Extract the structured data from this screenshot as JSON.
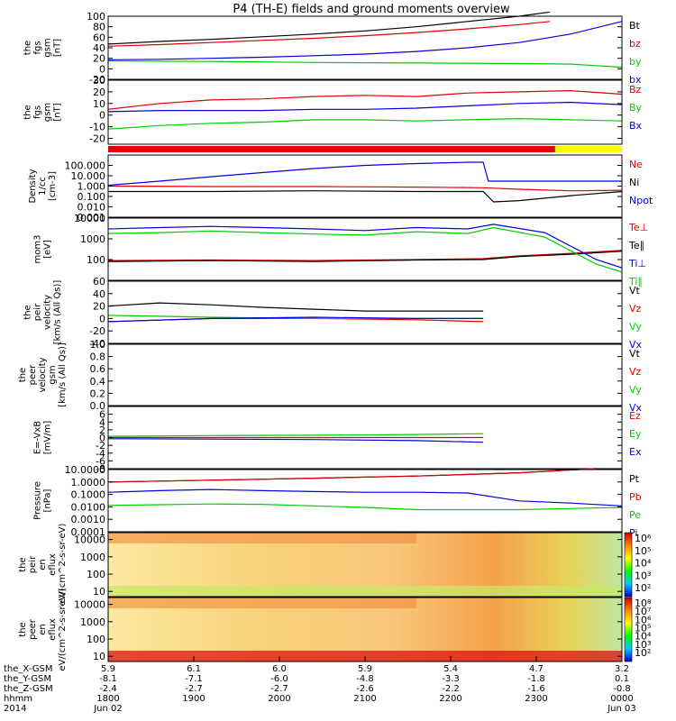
{
  "title": "P4 (TH-E) fields and ground moments overview",
  "colors": {
    "black": "#000000",
    "red": "#e00000",
    "blue": "#0000e0",
    "green": "#00cc00",
    "yellow": "#ffff00",
    "cyan": "#00c8ff"
  },
  "chart_data": [
    {
      "type": "line",
      "ylabel": [
        "the",
        "fgs",
        "gsm",
        "[nT]"
      ],
      "ylim": [
        -20,
        100
      ],
      "yticks": [
        "100",
        "80",
        "60",
        "40",
        "20",
        "0",
        "-20"
      ],
      "ytick_values": [
        100,
        80,
        60,
        40,
        20,
        0,
        -20
      ],
      "series": [
        {
          "name": "Bt",
          "color": "black",
          "x": [
            0,
            0.1,
            0.2,
            0.3,
            0.4,
            0.5,
            0.6,
            0.7,
            0.8,
            0.86
          ],
          "y": [
            47,
            52,
            56,
            61,
            66,
            72,
            80,
            90,
            100,
            108
          ]
        },
        {
          "name": "bz",
          "color": "red",
          "x": [
            0,
            0.1,
            0.2,
            0.3,
            0.4,
            0.5,
            0.6,
            0.7,
            0.8,
            0.86
          ],
          "y": [
            43,
            46,
            50,
            54,
            58,
            63,
            69,
            76,
            84,
            90
          ]
        },
        {
          "name": "by",
          "color": "green",
          "x": [
            0,
            0.2,
            0.4,
            0.6,
            0.8,
            0.9,
            0.95,
            1.0
          ],
          "y": [
            15,
            14,
            12,
            11,
            10,
            9,
            6,
            3
          ]
        },
        {
          "name": "bx",
          "color": "blue",
          "x": [
            0,
            0.1,
            0.2,
            0.3,
            0.4,
            0.5,
            0.6,
            0.7,
            0.8,
            0.9,
            1.0
          ],
          "y": [
            17,
            18,
            20,
            22,
            25,
            28,
            33,
            40,
            50,
            66,
            90
          ]
        }
      ]
    },
    {
      "type": "line",
      "ylabel": [
        "the",
        "fgs",
        "gsm",
        "[nT]"
      ],
      "ylim": [
        -25,
        30
      ],
      "yticks": [
        "30",
        "20",
        "10",
        "0",
        "-10",
        "-20"
      ],
      "ytick_values": [
        30,
        20,
        10,
        0,
        -10,
        -20
      ],
      "series": [
        {
          "name": "Bz",
          "color": "red",
          "x": [
            0,
            0.1,
            0.2,
            0.3,
            0.4,
            0.5,
            0.6,
            0.7,
            0.8,
            0.9,
            1.0
          ],
          "y": [
            5,
            10,
            13,
            14,
            16,
            17,
            16,
            19,
            20,
            21,
            18
          ]
        },
        {
          "name": "By",
          "color": "green",
          "x": [
            0,
            0.1,
            0.2,
            0.3,
            0.4,
            0.5,
            0.6,
            0.7,
            0.8,
            0.9,
            1.0
          ],
          "y": [
            -12,
            -9,
            -7,
            -6,
            -4,
            -4,
            -5,
            -4,
            -3,
            -4,
            -5
          ]
        },
        {
          "name": "Bx",
          "color": "blue",
          "x": [
            0,
            0.1,
            0.2,
            0.3,
            0.4,
            0.5,
            0.6,
            0.7,
            0.8,
            0.9,
            1.0
          ],
          "y": [
            3,
            4,
            4,
            4,
            5,
            5,
            6,
            8,
            10,
            11,
            9
          ]
        }
      ]
    },
    {
      "type": "line",
      "ylabel": [
        "Density",
        "1/cc",
        "[cm-3]"
      ],
      "ylog": true,
      "ylim": [
        0.001,
        1000
      ],
      "yticks": [
        "100.000",
        "10.000",
        "1.000",
        "0.100",
        "0.010",
        "0.001"
      ],
      "ytick_values": [
        100,
        10,
        1,
        0.1,
        0.01,
        0.001
      ],
      "series": [
        {
          "name": "Ne",
          "color": "red",
          "x": [
            0,
            0.2,
            0.4,
            0.6,
            0.73,
            0.8,
            0.9,
            1.0
          ],
          "y": [
            1,
            0.9,
            0.9,
            0.8,
            0.7,
            0.5,
            0.35,
            0.4
          ]
        },
        {
          "name": "Ni",
          "color": "black",
          "x": [
            0,
            0.2,
            0.4,
            0.6,
            0.73,
            0.75,
            0.8,
            0.9,
            1.0
          ],
          "y": [
            0.3,
            0.3,
            0.35,
            0.3,
            0.3,
            0.03,
            0.04,
            0.12,
            0.3
          ]
        },
        {
          "name": "Npot",
          "color": "blue",
          "x": [
            0,
            0.1,
            0.2,
            0.3,
            0.4,
            0.5,
            0.6,
            0.7,
            0.73,
            0.74,
            1.0
          ],
          "y": [
            1.2,
            3,
            8,
            20,
            50,
            100,
            150,
            200,
            200,
            3,
            3
          ]
        }
      ]
    },
    {
      "type": "line",
      "ylabel": [
        "mom3",
        "[eV]"
      ],
      "ylog": true,
      "ylim": [
        10,
        10000
      ],
      "yticks": [
        "10000",
        "1000",
        "100"
      ],
      "ytick_values": [
        10000,
        1000,
        100
      ],
      "series": [
        {
          "name": "Te⊥",
          "color": "red",
          "x": [
            0,
            0.2,
            0.4,
            0.6,
            0.73,
            0.8,
            0.9,
            1.0
          ],
          "y": [
            90,
            95,
            90,
            100,
            110,
            150,
            200,
            280
          ]
        },
        {
          "name": "Te∥",
          "color": "black",
          "x": [
            0,
            0.2,
            0.4,
            0.6,
            0.73,
            0.8,
            0.9,
            1.0
          ],
          "y": [
            80,
            90,
            80,
            95,
            100,
            140,
            180,
            250
          ]
        },
        {
          "name": "Ti⊥",
          "color": "blue",
          "x": [
            0,
            0.1,
            0.2,
            0.3,
            0.4,
            0.5,
            0.6,
            0.7,
            0.75,
            0.85,
            0.95,
            1.0
          ],
          "y": [
            3000,
            3500,
            4000,
            3500,
            3000,
            2500,
            3500,
            3000,
            5000,
            2000,
            100,
            40
          ]
        },
        {
          "name": "Ti∥",
          "color": "green",
          "x": [
            0,
            0.1,
            0.2,
            0.3,
            0.4,
            0.5,
            0.6,
            0.7,
            0.75,
            0.85,
            0.95,
            1.0
          ],
          "y": [
            1800,
            2000,
            2400,
            2000,
            1700,
            1500,
            2200,
            1800,
            3500,
            1200,
            60,
            25
          ]
        }
      ]
    },
    {
      "type": "line",
      "ylabel": [
        "the",
        "peir",
        "velocity",
        "[km/s (All Qs)]"
      ],
      "ylim": [
        -40,
        60
      ],
      "yticks": [
        "60",
        "40",
        "20",
        "0",
        "-20",
        "-40"
      ],
      "ytick_values": [
        60,
        40,
        20,
        0,
        -20,
        -40
      ],
      "series": [
        {
          "name": "Vt",
          "color": "black",
          "x": [
            0,
            0.1,
            0.2,
            0.3,
            0.4,
            0.5,
            0.6,
            0.7,
            0.73
          ],
          "y": [
            20,
            25,
            22,
            18,
            15,
            12,
            12,
            12,
            12
          ]
        },
        {
          "name": "Vz",
          "color": "red",
          "x": [
            0,
            0.2,
            0.4,
            0.6,
            0.73
          ],
          "y": [
            -5,
            0,
            0,
            -2,
            -5
          ]
        },
        {
          "name": "Vy",
          "color": "green",
          "x": [
            0,
            0.2,
            0.4,
            0.6,
            0.73
          ],
          "y": [
            5,
            2,
            0,
            0,
            0
          ]
        },
        {
          "name": "Vx",
          "color": "blue",
          "x": [
            0,
            0.2,
            0.4,
            0.6,
            0.73
          ],
          "y": [
            -5,
            0,
            2,
            0,
            0
          ]
        }
      ]
    },
    {
      "type": "line",
      "ylabel": [
        "the",
        "peer",
        "velocity",
        "gsm",
        "[km/s (All Qs)]"
      ],
      "ylim": [
        0,
        1
      ],
      "yticks": [
        "1.0",
        "0.8",
        "0.6",
        "0.4",
        "0.2",
        "0.0"
      ],
      "ytick_values": [
        1,
        0.8,
        0.6,
        0.4,
        0.2,
        0
      ],
      "series": [
        {
          "name": "Vt",
          "color": "black",
          "x": [],
          "y": []
        },
        {
          "name": "Vz",
          "color": "red",
          "x": [],
          "y": []
        },
        {
          "name": "Vy",
          "color": "green",
          "x": [],
          "y": []
        },
        {
          "name": "Vx",
          "color": "blue",
          "x": [],
          "y": []
        }
      ]
    },
    {
      "type": "line",
      "ylabel": [
        "E=-VxB",
        "[mV/m]"
      ],
      "ylim": [
        -8,
        8
      ],
      "yticks": [
        "6",
        "4",
        "2",
        "0",
        "-2",
        "-4",
        "-6",
        "-8"
      ],
      "ytick_values": [
        6,
        4,
        2,
        0,
        -2,
        -4,
        -6,
        -8
      ],
      "series": [
        {
          "name": "Ez",
          "color": "red",
          "x": [
            0,
            0.2,
            0.4,
            0.6,
            0.73
          ],
          "y": [
            0,
            0,
            0,
            0,
            0
          ]
        },
        {
          "name": "Ey",
          "color": "green",
          "x": [
            0,
            0.2,
            0.4,
            0.6,
            0.73
          ],
          "y": [
            0.3,
            0.5,
            0.6,
            0.8,
            1.0
          ]
        },
        {
          "name": "Ex",
          "color": "blue",
          "x": [
            0,
            0.2,
            0.4,
            0.6,
            0.73
          ],
          "y": [
            -0.3,
            -0.4,
            -0.5,
            -0.8,
            -1.2
          ]
        }
      ]
    },
    {
      "type": "line",
      "ylabel": [
        "Pressure",
        "[nPa]"
      ],
      "ylog": true,
      "ylim": [
        0.0001,
        10
      ],
      "yticks": [
        "10.0000",
        "1.0000",
        "0.1000",
        "0.0100",
        "0.0010",
        "0.0001"
      ],
      "ytick_values": [
        10,
        1,
        0.1,
        0.01,
        0.001,
        0.0001
      ],
      "series": [
        {
          "name": "Pt",
          "color": "black",
          "x": [
            0,
            0.2,
            0.4,
            0.6,
            0.8,
            0.95
          ],
          "y": [
            1.0,
            1.4,
            2.0,
            3.0,
            5.5,
            12
          ]
        },
        {
          "name": "Pb",
          "color": "red",
          "x": [
            0,
            0.2,
            0.4,
            0.6,
            0.8,
            0.95
          ],
          "y": [
            1.0,
            1.4,
            2.0,
            3.0,
            5.5,
            12
          ]
        },
        {
          "name": "Pe",
          "color": "green",
          "x": [
            0,
            0.1,
            0.2,
            0.3,
            0.4,
            0.5,
            0.6,
            0.8,
            1.0
          ],
          "y": [
            0.013,
            0.015,
            0.017,
            0.016,
            0.012,
            0.009,
            0.006,
            0.006,
            0.009
          ]
        },
        {
          "name": "Pi",
          "color": "blue",
          "x": [
            0,
            0.1,
            0.2,
            0.3,
            0.4,
            0.5,
            0.6,
            0.7,
            0.8,
            0.9,
            1.0
          ],
          "y": [
            0.15,
            0.2,
            0.25,
            0.2,
            0.17,
            0.15,
            0.15,
            0.13,
            0.03,
            0.02,
            0.012
          ]
        }
      ]
    },
    {
      "type": "heatmap",
      "ylabel": [
        "the",
        "peir",
        "en",
        "eflux",
        "eV/(cm^2-s-sr-eV)"
      ],
      "ylog": true,
      "ylim": [
        5,
        25000
      ],
      "yticks": [
        "10000",
        "1000",
        "100",
        "10"
      ],
      "ytick_values": [
        10000,
        1000,
        100,
        10
      ],
      "colorbar_labels": [
        "10⁶",
        "10⁵",
        "10⁴",
        "10³",
        "10²"
      ]
    },
    {
      "type": "heatmap",
      "ylabel": [
        "the",
        "peer",
        "en",
        "eflux",
        "eV/(cm^2-s-sr-eV)"
      ],
      "ylog": true,
      "ylim": [
        5,
        25000
      ],
      "yticks": [
        "10000",
        "1000",
        "100",
        "10"
      ],
      "ytick_values": [
        10000,
        1000,
        100,
        10
      ],
      "colorbar_labels": [
        "10⁸",
        "10⁷",
        "10⁶",
        "10⁵",
        "10⁴",
        "10³",
        "10²"
      ]
    }
  ],
  "xaxis": {
    "row_labels": [
      "the_X-GSM",
      "the_Y-GSM",
      "the_Z-GSM",
      "hhmm",
      "2014"
    ],
    "tick_positions": [
      0,
      0.1667,
      0.3333,
      0.5,
      0.6667,
      0.8333,
      1.0
    ],
    "columns": [
      [
        "5.9",
        "-8.1",
        "-2.4",
        "1800",
        "Jun 02"
      ],
      [
        "6.1",
        "-7.1",
        "-2.7",
        "1900",
        ""
      ],
      [
        "6.0",
        "-6.0",
        "-2.7",
        "2000",
        ""
      ],
      [
        "5.9",
        "-4.8",
        "-2.6",
        "2100",
        ""
      ],
      [
        "5.4",
        "-3.3",
        "-2.2",
        "2200",
        ""
      ],
      [
        "4.7",
        "-1.8",
        "-1.6",
        "2300",
        ""
      ],
      [
        "3.2",
        "0.1",
        "-0.8",
        "0000",
        "Jun 03"
      ]
    ]
  }
}
